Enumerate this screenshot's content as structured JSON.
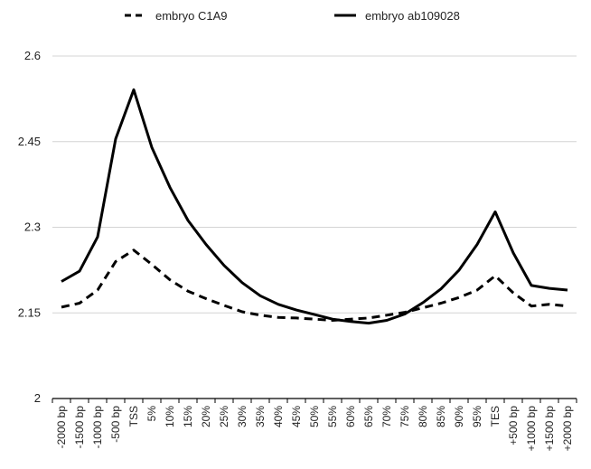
{
  "chart_data": {
    "type": "line",
    "title": "",
    "xlabel": "",
    "ylabel": "",
    "ylim": [
      2,
      2.6
    ],
    "yticks": [
      "2",
      "2.15",
      "2.3",
      "2.45",
      "2.6"
    ],
    "ytick_values": [
      2,
      2.15,
      2.3,
      2.45,
      2.6
    ],
    "grid": "horizontal",
    "legend": "top",
    "categories": [
      "-2000 bp",
      "-1500 bp",
      "-1000 bp",
      "-500 bp",
      "TSS",
      "5%",
      "10%",
      "15%",
      "20%",
      "25%",
      "30%",
      "35%",
      "40%",
      "45%",
      "50%",
      "55%",
      "60%",
      "65%",
      "70%",
      "75%",
      "80%",
      "85%",
      "90%",
      "95%",
      "TES",
      "+500 bp",
      "+1000 bp",
      "+1500 bp",
      "+2000 bp"
    ],
    "series": [
      {
        "name": "embryo C1A9",
        "style": "dashed",
        "color": "#000000",
        "values": [
          2.16,
          2.167,
          2.19,
          2.24,
          2.26,
          2.235,
          2.208,
          2.188,
          2.175,
          2.163,
          2.152,
          2.146,
          2.142,
          2.141,
          2.139,
          2.137,
          2.139,
          2.141,
          2.146,
          2.151,
          2.159,
          2.167,
          2.177,
          2.19,
          2.215,
          2.185,
          2.162,
          2.165,
          2.162
        ]
      },
      {
        "name": "embryo ab109028",
        "style": "solid",
        "color": "#000000",
        "values": [
          2.205,
          2.223,
          2.283,
          2.455,
          2.541,
          2.44,
          2.37,
          2.312,
          2.27,
          2.233,
          2.203,
          2.18,
          2.165,
          2.155,
          2.147,
          2.139,
          2.135,
          2.132,
          2.137,
          2.148,
          2.168,
          2.192,
          2.225,
          2.27,
          2.327,
          2.255,
          2.198,
          2.193,
          2.19
        ]
      }
    ]
  }
}
